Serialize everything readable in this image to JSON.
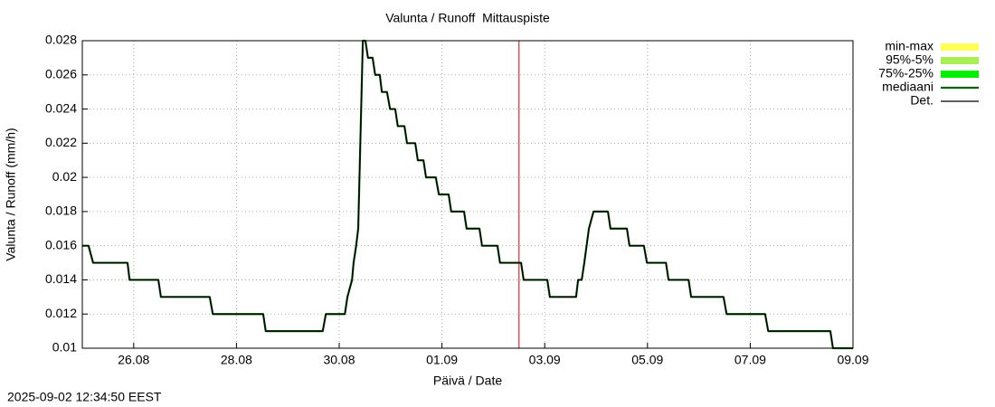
{
  "chart_data": {
    "type": "line",
    "title": "Valunta / Runoff  Mittauspiste",
    "xlabel": "Päivä / Date",
    "ylabel": "Valunta / Runoff (mm/h)",
    "timestamp": "2025-09-02 12:34:50 EEST",
    "xlim": [
      0,
      15
    ],
    "ylim": [
      0.01,
      0.028
    ],
    "xticks": [
      {
        "value": 1,
        "label": "26.08"
      },
      {
        "value": 3,
        "label": "28.08"
      },
      {
        "value": 5,
        "label": "30.08"
      },
      {
        "value": 7,
        "label": "01.09"
      },
      {
        "value": 9,
        "label": "03.09"
      },
      {
        "value": 11,
        "label": "05.09"
      },
      {
        "value": 13,
        "label": "07.09"
      },
      {
        "value": 15,
        "label": "09.09"
      }
    ],
    "yticks": [
      0.01,
      0.012,
      0.014,
      0.016,
      0.018,
      0.02,
      0.022,
      0.024,
      0.026,
      0.028
    ],
    "grid": true,
    "now_x": 8.5,
    "now_color": "#dd0000",
    "bands": [
      {
        "name": "min-max",
        "color": "#ffff55"
      },
      {
        "name": "95%-5%",
        "color": "#aaee55"
      },
      {
        "name": "75%-25%",
        "color": "#00ee00"
      }
    ],
    "x": [
      0,
      0.12,
      0.21,
      0.88,
      0.92,
      1.48,
      1.53,
      2.48,
      2.54,
      3.52,
      3.57,
      4.68,
      4.74,
      5.11,
      5.16,
      5.25,
      5.28,
      5.33,
      5.37,
      5.46,
      5.51,
      5.56,
      5.65,
      5.7,
      5.79,
      5.83,
      5.93,
      5.99,
      6.09,
      6.14,
      6.27,
      6.32,
      6.48,
      6.53,
      6.64,
      6.69,
      6.88,
      6.94,
      7.13,
      7.18,
      7.43,
      7.48,
      7.73,
      7.78,
      8.08,
      8.13,
      8.54,
      8.59,
      9.05,
      9.1,
      9.61,
      9.65,
      9.72,
      9.77,
      9.86,
      9.95,
      10.23,
      10.28,
      10.6,
      10.65,
      10.93,
      10.99,
      11.36,
      11.41,
      11.8,
      11.85,
      12.48,
      12.54,
      13.29,
      13.35,
      14.56,
      14.61,
      15
    ],
    "series": [
      {
        "name": "mediaani",
        "color": "#006400",
        "width": 2.2,
        "values": [
          0.016,
          0.016,
          0.015,
          0.015,
          0.014,
          0.014,
          0.013,
          0.013,
          0.012,
          0.012,
          0.011,
          0.011,
          0.012,
          0.012,
          0.013,
          0.014,
          0.015,
          0.016,
          0.017,
          0.028,
          0.028,
          0.027,
          0.027,
          0.026,
          0.026,
          0.025,
          0.025,
          0.024,
          0.024,
          0.023,
          0.023,
          0.022,
          0.022,
          0.021,
          0.021,
          0.02,
          0.02,
          0.019,
          0.019,
          0.018,
          0.018,
          0.017,
          0.017,
          0.016,
          0.016,
          0.015,
          0.015,
          0.014,
          0.014,
          0.013,
          0.013,
          0.014,
          0.014,
          0.015,
          0.017,
          0.018,
          0.018,
          0.017,
          0.017,
          0.016,
          0.016,
          0.015,
          0.015,
          0.014,
          0.014,
          0.013,
          0.013,
          0.012,
          0.012,
          0.011,
          0.011,
          0.01,
          0.01
        ]
      },
      {
        "name": "Det.",
        "color": "#000000",
        "width": 1.3,
        "values": [
          0.016,
          0.016,
          0.015,
          0.015,
          0.014,
          0.014,
          0.013,
          0.013,
          0.012,
          0.012,
          0.011,
          0.011,
          0.012,
          0.012,
          0.013,
          0.014,
          0.015,
          0.016,
          0.017,
          0.028,
          0.028,
          0.027,
          0.027,
          0.026,
          0.026,
          0.025,
          0.025,
          0.024,
          0.024,
          0.023,
          0.023,
          0.022,
          0.022,
          0.021,
          0.021,
          0.02,
          0.02,
          0.019,
          0.019,
          0.018,
          0.018,
          0.017,
          0.017,
          0.016,
          0.016,
          0.015,
          0.015,
          0.014,
          0.014,
          0.013,
          0.013,
          0.014,
          0.014,
          0.015,
          0.017,
          0.018,
          0.018,
          0.017,
          0.017,
          0.016,
          0.016,
          0.015,
          0.015,
          0.014,
          0.014,
          0.013,
          0.013,
          0.012,
          0.012,
          0.011,
          0.011,
          0.01,
          0.01
        ]
      }
    ]
  }
}
